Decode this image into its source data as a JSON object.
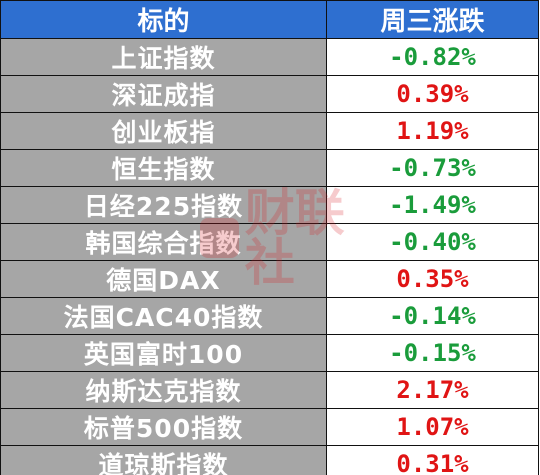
{
  "table": {
    "header": {
      "name_col": "标的",
      "change_col": "周三涨跌"
    },
    "rows": [
      {
        "name": "上证指数",
        "change": "-0.82%",
        "color": "#1a9c3b"
      },
      {
        "name": "深证成指",
        "change": "0.39%",
        "color": "#e01414"
      },
      {
        "name": "创业板指",
        "change": "1.19%",
        "color": "#e01414"
      },
      {
        "name": "恒生指数",
        "change": "-0.73%",
        "color": "#1a9c3b"
      },
      {
        "name": "日经225指数",
        "change": "-1.49%",
        "color": "#1a9c3b"
      },
      {
        "name": "韩国综合指数",
        "change": "-0.40%",
        "color": "#1a9c3b"
      },
      {
        "name": "德国DAX",
        "change": "0.35%",
        "color": "#e01414"
      },
      {
        "name": "法国CAC40指数",
        "change": "-0.14%",
        "color": "#1a9c3b"
      },
      {
        "name": "英国富时100",
        "change": "-0.15%",
        "color": "#1a9c3b"
      },
      {
        "name": "纳斯达克指数",
        "change": "2.17%",
        "color": "#e01414"
      },
      {
        "name": "标普500指数",
        "change": "1.07%",
        "color": "#e01414"
      },
      {
        "name": "道琼斯指数",
        "change": "0.31%",
        "color": "#e01414"
      }
    ]
  },
  "watermark": {
    "text": "财联社"
  },
  "colors": {
    "header_bg": "#2e6fd0",
    "name_cell_bg": "#a6a6a6",
    "positive": "#e01414",
    "negative": "#1a9c3b"
  }
}
